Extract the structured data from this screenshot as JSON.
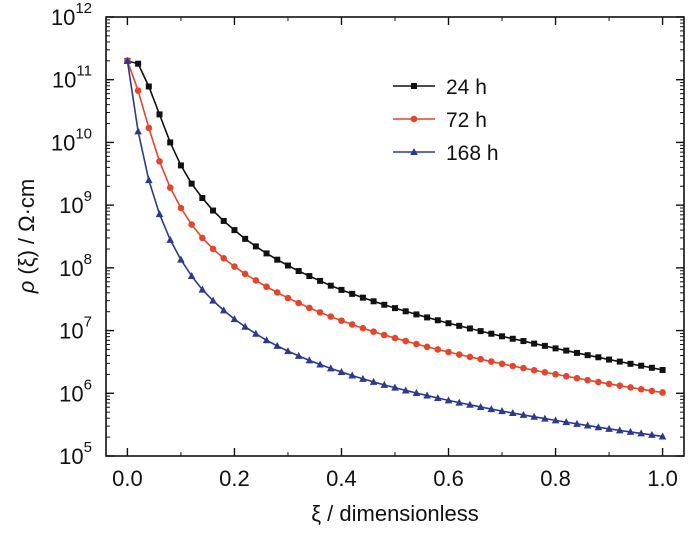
{
  "chart_data": {
    "type": "line",
    "title": "",
    "xlabel": "ξ / dimensionless",
    "ylabel": {
      "prefix": "ρ",
      "mid": "(ξ)",
      "suffix": "/ Ω·cm"
    },
    "xlim": [
      -0.04,
      1.04
    ],
    "ylim": [
      100000,
      1000000000000
    ],
    "yscale": "log",
    "grid": false,
    "legend_position": "top-right",
    "x_ticks": [
      "0.0",
      "0.2",
      "0.4",
      "0.6",
      "0.8",
      "1.0"
    ],
    "y_ticks": [
      {
        "base": "10",
        "exp": "5"
      },
      {
        "base": "10",
        "exp": "6"
      },
      {
        "base": "10",
        "exp": "7"
      },
      {
        "base": "10",
        "exp": "8"
      },
      {
        "base": "10",
        "exp": "9"
      },
      {
        "base": "10",
        "exp": "10"
      },
      {
        "base": "10",
        "exp": "11"
      },
      {
        "base": "10",
        "exp": "12"
      }
    ],
    "x": [
      0.0,
      0.02,
      0.04,
      0.06,
      0.08,
      0.1,
      0.12,
      0.14,
      0.16,
      0.18,
      0.2,
      0.22,
      0.24,
      0.26,
      0.28,
      0.3,
      0.32,
      0.34,
      0.36,
      0.38,
      0.4,
      0.42,
      0.44,
      0.46,
      0.48,
      0.5,
      0.52,
      0.54,
      0.56,
      0.58,
      0.6,
      0.62,
      0.64,
      0.66,
      0.68,
      0.7,
      0.72,
      0.74,
      0.76,
      0.78,
      0.8,
      0.82,
      0.84,
      0.86,
      0.88,
      0.9,
      0.92,
      0.94,
      0.96,
      0.98,
      1.0
    ],
    "series": [
      {
        "name": "24 h",
        "color": "#111111",
        "marker": "square",
        "values": [
          200000000000.0,
          180000000000.0,
          78000000000.0,
          28000000000.0,
          10000000000.0,
          4300000000.0,
          2200000000.0,
          1300000000.0,
          820000000.0,
          560000000.0,
          400000000.0,
          290000000.0,
          220000000.0,
          170000000.0,
          135000000.0,
          109000000.0,
          89000000.0,
          74000000.0,
          62000000.0,
          52000000.0,
          44500000.0,
          38500000.0,
          33500000.0,
          29300000.0,
          25800000.0,
          22800000.0,
          20300000.0,
          18100000.0,
          16200000.0,
          14600000.0,
          13100000.0,
          11900000.0,
          10800000.0,
          9800000.0,
          8900000.0,
          8100000.0,
          7400000.0,
          6800000.0,
          6200000.0,
          5700000.0,
          5200000.0,
          4800000.0,
          4400000.0,
          4050000.0,
          3750000.0,
          3450000.0,
          3200000.0,
          2950000.0,
          2750000.0,
          2550000.0,
          2350000.0
        ]
      },
      {
        "name": "72 h",
        "color": "#e5452a",
        "marker": "circle",
        "values": [
          200000000000.0,
          67000000000.0,
          17000000000.0,
          5000000000.0,
          1900000000.0,
          900000000.0,
          490000000.0,
          300000000.0,
          200000000.0,
          142000000.0,
          105000000.0,
          80000000.0,
          63000000.0,
          50000000.0,
          40500000.0,
          33000000.0,
          27500000.0,
          23000000.0,
          19500000.0,
          16700000.0,
          14400000.0,
          12500000.0,
          10900000.0,
          9600000.0,
          8500000.0,
          7600000.0,
          6800000.0,
          6100000.0,
          5500000.0,
          5000000.0,
          4550000.0,
          4150000.0,
          3800000.0,
          3500000.0,
          3200000.0,
          2950000.0,
          2720000.0,
          2520000.0,
          2330000.0,
          2160000.0,
          2010000.0,
          1870000.0,
          1740000.0,
          1620000.0,
          1510000.0,
          1410000.0,
          1320000.0,
          1240000.0,
          1160000.0,
          1090000.0,
          1030000.0
        ]
      },
      {
        "name": "168 h",
        "color": "#2b3a8e",
        "marker": "triangle",
        "values": [
          200000000000.0,
          15000000000.0,
          2500000000.0,
          720000000.0,
          280000000.0,
          135000000.0,
          74000000.0,
          45000000.0,
          30000000.0,
          21000000.0,
          15200000.0,
          11500000.0,
          8900000.0,
          7000000.0,
          5700000.0,
          4700000.0,
          3950000.0,
          3350000.0,
          2880000.0,
          2500000.0,
          2180000.0,
          1920000.0,
          1700000.0,
          1520000.0,
          1360000.0,
          1230000.0,
          1110000.0,
          1010000.0,
          920000.0,
          840000.0,
          770000.0,
          710000.0,
          655000.0,
          605000.0,
          560000.0,
          520000.0,
          485000.0,
          452000.0,
          422000.0,
          395000.0,
          370000.0,
          347000.0,
          326000.0,
          306000.0,
          288000.0,
          271000.0,
          256000.0,
          242000.0,
          229000.0,
          217000.0,
          205000.0
        ]
      }
    ]
  }
}
